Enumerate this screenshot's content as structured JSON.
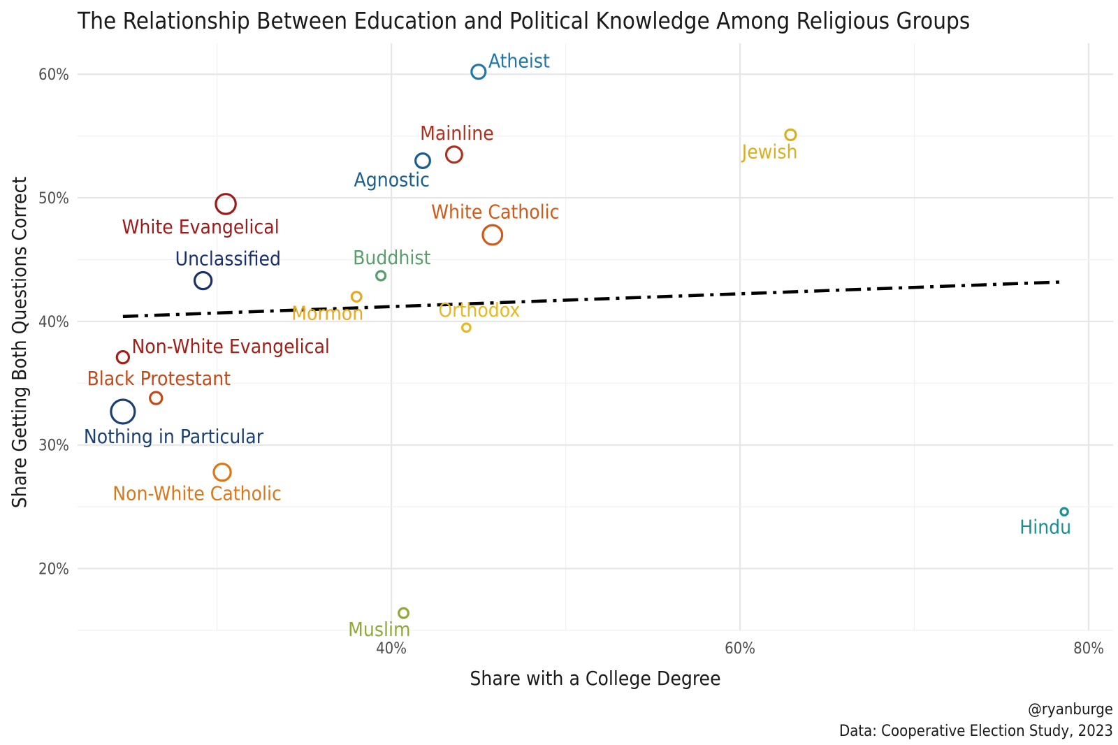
{
  "chart_data": {
    "type": "scatter",
    "title": "The Relationship Between Education and Political Knowledge Among Religious Groups",
    "xlabel": "Share with a College Degree",
    "ylabel": "Share Getting Both Questions Correct",
    "xlim": [
      0.22,
      0.814
    ],
    "ylim": [
      0.15,
      0.625
    ],
    "x_ticks": [
      0.4,
      0.6,
      0.8
    ],
    "x_tick_labels": [
      "40%",
      "60%",
      "80%"
    ],
    "y_ticks": [
      0.2,
      0.3,
      0.4,
      0.5,
      0.6
    ],
    "y_tick_labels": [
      "20%",
      "30%",
      "40%",
      "50%",
      "60%"
    ],
    "grid": true,
    "legend": "none",
    "points": [
      {
        "label": "Atheist",
        "x": 0.45,
        "y": 0.602,
        "size": 2.0,
        "color": "#1f78a8",
        "label_pos": "right"
      },
      {
        "label": "Mainline",
        "x": 0.436,
        "y": 0.535,
        "size": 2.4,
        "color": "#b03020",
        "label_pos": "above"
      },
      {
        "label": "Agnostic",
        "x": 0.418,
        "y": 0.53,
        "size": 2.1,
        "color": "#1a5e8f",
        "label_pos": "below-left"
      },
      {
        "label": "Jewish",
        "x": 0.629,
        "y": 0.551,
        "size": 1.3,
        "color": "#d8b020",
        "label_pos": "below-left"
      },
      {
        "label": "White Evangelical",
        "x": 0.305,
        "y": 0.495,
        "size": 3.2,
        "color": "#9e1a1a",
        "label_pos": "below"
      },
      {
        "label": "White Catholic",
        "x": 0.458,
        "y": 0.47,
        "size": 3.1,
        "color": "#d05a1a",
        "label_pos": "above"
      },
      {
        "label": "Unclassified",
        "x": 0.292,
        "y": 0.433,
        "size": 2.6,
        "color": "#1a2f6e",
        "label_pos": "above-right"
      },
      {
        "label": "Buddhist",
        "x": 0.394,
        "y": 0.437,
        "size": 1.0,
        "color": "#5a9e6e",
        "label_pos": "above-right"
      },
      {
        "label": "Mormon",
        "x": 0.38,
        "y": 0.42,
        "size": 1.1,
        "color": "#e8a820",
        "label_pos": "below-left"
      },
      {
        "label": "Orthodox",
        "x": 0.443,
        "y": 0.395,
        "size": 0.8,
        "color": "#e8b820",
        "label_pos": "above-right"
      },
      {
        "label": "Non-White Evangelical",
        "x": 0.246,
        "y": 0.371,
        "size": 1.6,
        "color": "#a02018",
        "label_pos": "right"
      },
      {
        "label": "Black Protestant",
        "x": 0.265,
        "y": 0.338,
        "size": 1.6,
        "color": "#c04a1a",
        "label_pos": "above"
      },
      {
        "label": "Nothing in Particular",
        "x": 0.246,
        "y": 0.327,
        "size": 4.0,
        "color": "#1a3f72",
        "label_pos": "below-right"
      },
      {
        "label": "Non-White Catholic",
        "x": 0.303,
        "y": 0.278,
        "size": 2.6,
        "color": "#d8781a",
        "label_pos": "below"
      },
      {
        "label": "Hindu",
        "x": 0.786,
        "y": 0.246,
        "size": 0.6,
        "color": "#1a9090",
        "label_pos": "below-left"
      },
      {
        "label": "Muslim",
        "x": 0.407,
        "y": 0.164,
        "size": 1.1,
        "color": "#90aa3a",
        "label_pos": "below-left"
      }
    ],
    "trend_line": {
      "style": "dashdot",
      "color": "#000000",
      "x": [
        0.246,
        0.786
      ],
      "y": [
        0.404,
        0.432
      ]
    },
    "caption": [
      "@ryanburge",
      "Data: Cooperative Election Study, 2023"
    ]
  }
}
